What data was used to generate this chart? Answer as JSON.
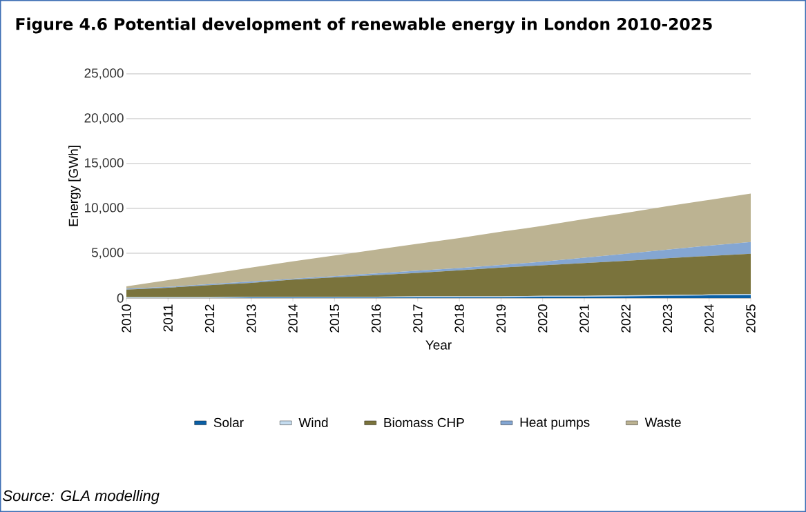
{
  "chart_data": {
    "type": "area",
    "stacked": true,
    "title": "Figure 4.6  Potential development of renewable energy in London 2010-2025",
    "xlabel": "Year",
    "ylabel": "Energy [GWh]",
    "annotations": [
      "Source:  GLA modelling"
    ],
    "x": [
      2010,
      2011,
      2012,
      2013,
      2014,
      2015,
      2016,
      2017,
      2018,
      2019,
      2020,
      2021,
      2022,
      2023,
      2024,
      2025
    ],
    "xlim": [
      2010,
      2025
    ],
    "xticks": [
      2010,
      2011,
      2012,
      2013,
      2014,
      2015,
      2016,
      2017,
      2018,
      2019,
      2020,
      2021,
      2022,
      2023,
      2024,
      2025
    ],
    "ylim": [
      0,
      25000
    ],
    "yticks": [
      0,
      {
        "value": 5000,
        "label": "5,000"
      },
      {
        "value": 10000,
        "label": "10,000"
      },
      {
        "value": 15000,
        "label": "15,000"
      },
      {
        "value": 20000,
        "label": "20,000"
      },
      {
        "value": 25000,
        "label": "25,000"
      }
    ],
    "grid": "y",
    "legend": "bottom",
    "series": [
      {
        "name": "Solar",
        "color": "#0a5fa5",
        "values": [
          0,
          0,
          0,
          50,
          50,
          50,
          50,
          100,
          100,
          100,
          150,
          150,
          200,
          250,
          300,
          350
        ]
      },
      {
        "name": "Wind",
        "color": "#c5dcef",
        "values": [
          100,
          100,
          100,
          100,
          100,
          100,
          100,
          100,
          100,
          100,
          100,
          100,
          100,
          100,
          100,
          100
        ]
      },
      {
        "name": "Biomass CHP",
        "color": "#7a733c",
        "values": [
          850,
          1050,
          1350,
          1550,
          1900,
          2150,
          2400,
          2600,
          2900,
          3200,
          3400,
          3650,
          3850,
          4100,
          4300,
          4500
        ]
      },
      {
        "name": "Heat pumps",
        "color": "#84a6d2",
        "values": [
          100,
          100,
          100,
          150,
          100,
          150,
          200,
          250,
          250,
          300,
          400,
          600,
          800,
          950,
          1150,
          1300
        ]
      },
      {
        "name": "Waste",
        "color": "#bcb392",
        "values": [
          250,
          750,
          1150,
          1550,
          1950,
          2300,
          2650,
          3000,
          3350,
          3700,
          4000,
          4300,
          4550,
          4850,
          5100,
          5400
        ]
      }
    ]
  }
}
